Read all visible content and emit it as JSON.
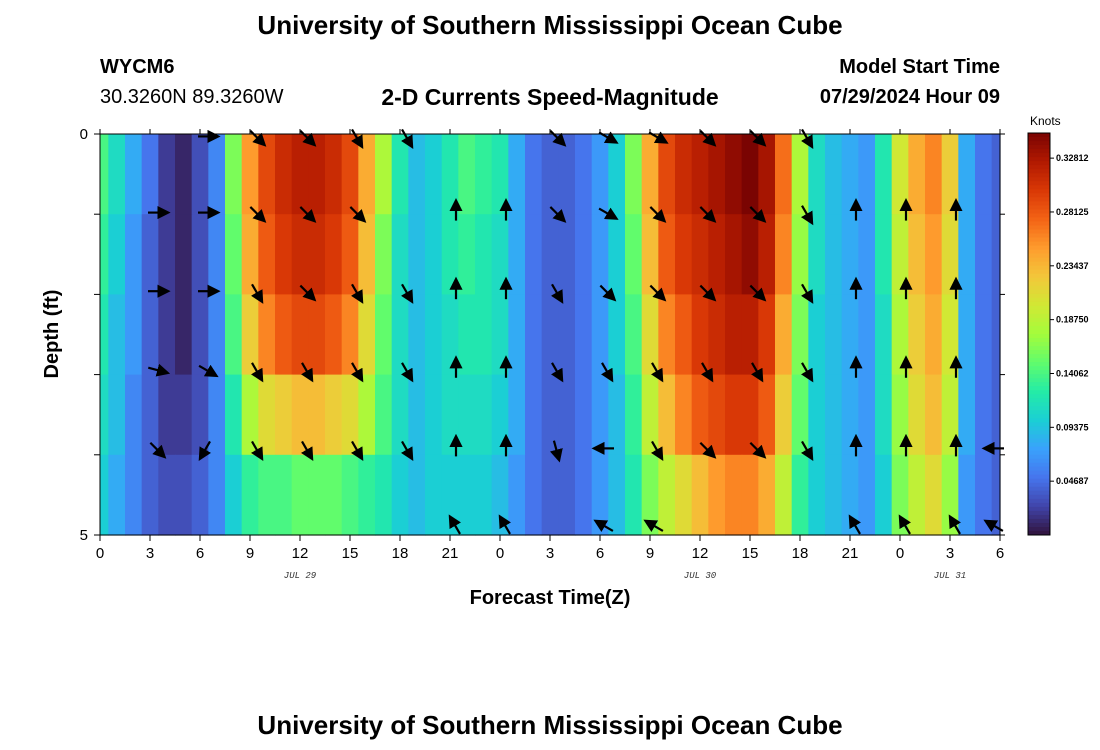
{
  "header": {
    "title": "University of Southern Mississippi Ocean Cube",
    "station_id": "WYCM6",
    "coordinates": "30.3260N  89.3260W",
    "subtitle": "2-D Currents Speed-Magnitude",
    "model_start_label": "Model Start Time",
    "model_start_value": "07/29/2024 Hour 09"
  },
  "footer": {
    "title": "University of Southern Mississippi Ocean Cube"
  },
  "chart_data": {
    "type": "heatmap",
    "title": "2-D Currents Speed-Magnitude",
    "xlabel": "Forecast Time(Z)",
    "ylabel": "Depth (ft)",
    "x_ticks": [
      "0",
      "3",
      "6",
      "9",
      "12",
      "15",
      "18",
      "21",
      "0",
      "3",
      "6",
      "9",
      "12",
      "15",
      "18",
      "21",
      "0",
      "3",
      "6"
    ],
    "date_labels": [
      {
        "text": "JUL 29",
        "x_hours": 12
      },
      {
        "text": "JUL 30",
        "x_hours": 36
      },
      {
        "text": "JUL 31",
        "x_hours": 51
      }
    ],
    "y_ticks": [
      "0",
      "5"
    ],
    "x_range_hours": [
      0,
      54
    ],
    "y_range_ft": [
      0,
      5
    ],
    "depth_levels": 5,
    "colorbar": {
      "unit": "Knots",
      "min": 0.0,
      "max": 0.35,
      "tick_labels": [
        "0.32812",
        "0.28125",
        "0.23437",
        "0.18750",
        "0.14062",
        "0.09375",
        "0.04687"
      ],
      "tick_values": [
        0.32812,
        0.28125,
        0.23437,
        0.1875,
        0.14062,
        0.09375,
        0.04687
      ],
      "colors": [
        "#30123b",
        "#4145ab",
        "#4675ed",
        "#39a2fc",
        "#1bcfd4",
        "#24eca6",
        "#61fc6c",
        "#a4fc3b",
        "#d1e834",
        "#f3c63a",
        "#fe9b2d",
        "#f36315",
        "#d93806",
        "#b11901",
        "#7a0402"
      ]
    },
    "columns_hours": [
      0,
      1,
      2,
      3,
      4,
      5,
      6,
      7,
      8,
      9,
      10,
      11,
      12,
      13,
      14,
      15,
      16,
      17,
      18,
      19,
      20,
      21,
      22,
      23,
      24,
      25,
      26,
      27,
      28,
      29,
      30,
      31,
      32,
      33,
      34,
      35,
      36,
      37,
      38,
      39,
      40,
      41,
      42,
      43,
      44,
      45,
      46,
      47,
      48,
      49,
      50,
      51,
      52,
      53,
      54
    ],
    "speed_knots": [
      [
        0.14,
        0.11,
        0.08,
        0.05,
        0.02,
        0.01,
        0.03,
        0.06,
        0.16,
        0.25,
        0.29,
        0.31,
        0.32,
        0.32,
        0.31,
        0.29,
        0.24,
        0.18,
        0.12,
        0.09,
        0.1,
        0.12,
        0.14,
        0.13,
        0.12,
        0.08,
        0.05,
        0.04,
        0.04,
        0.05,
        0.07,
        0.1,
        0.16,
        0.24,
        0.29,
        0.31,
        0.32,
        0.33,
        0.34,
        0.35,
        0.33,
        0.27,
        0.18,
        0.11,
        0.09,
        0.08,
        0.07,
        0.12,
        0.2,
        0.24,
        0.26,
        0.22,
        0.08,
        0.05,
        0.04
      ],
      [
        0.13,
        0.1,
        0.07,
        0.04,
        0.02,
        0.01,
        0.03,
        0.06,
        0.15,
        0.24,
        0.28,
        0.3,
        0.31,
        0.31,
        0.3,
        0.28,
        0.23,
        0.16,
        0.11,
        0.09,
        0.1,
        0.12,
        0.13,
        0.12,
        0.11,
        0.08,
        0.05,
        0.04,
        0.04,
        0.05,
        0.07,
        0.1,
        0.15,
        0.23,
        0.28,
        0.3,
        0.31,
        0.32,
        0.33,
        0.34,
        0.32,
        0.26,
        0.17,
        0.11,
        0.09,
        0.08,
        0.07,
        0.12,
        0.19,
        0.23,
        0.25,
        0.21,
        0.08,
        0.05,
        0.04
      ],
      [
        0.12,
        0.09,
        0.07,
        0.04,
        0.02,
        0.01,
        0.03,
        0.06,
        0.14,
        0.22,
        0.26,
        0.28,
        0.29,
        0.29,
        0.28,
        0.26,
        0.21,
        0.15,
        0.11,
        0.09,
        0.1,
        0.11,
        0.12,
        0.12,
        0.11,
        0.08,
        0.05,
        0.04,
        0.04,
        0.05,
        0.07,
        0.1,
        0.14,
        0.21,
        0.26,
        0.28,
        0.3,
        0.31,
        0.32,
        0.32,
        0.3,
        0.24,
        0.16,
        0.1,
        0.09,
        0.08,
        0.07,
        0.11,
        0.18,
        0.22,
        0.24,
        0.2,
        0.08,
        0.05,
        0.04
      ],
      [
        0.11,
        0.09,
        0.06,
        0.04,
        0.02,
        0.02,
        0.03,
        0.06,
        0.12,
        0.18,
        0.21,
        0.22,
        0.23,
        0.23,
        0.22,
        0.21,
        0.18,
        0.14,
        0.11,
        0.09,
        0.1,
        0.11,
        0.11,
        0.11,
        0.1,
        0.08,
        0.05,
        0.04,
        0.04,
        0.05,
        0.07,
        0.09,
        0.13,
        0.19,
        0.23,
        0.26,
        0.28,
        0.29,
        0.3,
        0.3,
        0.28,
        0.22,
        0.15,
        0.1,
        0.09,
        0.08,
        0.07,
        0.11,
        0.17,
        0.21,
        0.23,
        0.19,
        0.08,
        0.05,
        0.04
      ],
      [
        0.1,
        0.08,
        0.06,
        0.04,
        0.03,
        0.03,
        0.04,
        0.06,
        0.1,
        0.13,
        0.14,
        0.14,
        0.15,
        0.15,
        0.15,
        0.14,
        0.13,
        0.12,
        0.1,
        0.09,
        0.1,
        0.1,
        0.1,
        0.1,
        0.09,
        0.07,
        0.05,
        0.04,
        0.04,
        0.05,
        0.07,
        0.09,
        0.12,
        0.16,
        0.19,
        0.21,
        0.23,
        0.25,
        0.26,
        0.26,
        0.24,
        0.19,
        0.13,
        0.1,
        0.09,
        0.08,
        0.07,
        0.1,
        0.16,
        0.19,
        0.21,
        0.17,
        0.07,
        0.05,
        0.04
      ]
    ],
    "arrow_columns_hours": [
      0,
      3,
      6,
      9,
      12,
      15,
      18,
      21,
      24,
      27,
      30,
      33,
      36,
      39,
      42,
      45,
      48,
      51,
      54
    ],
    "arrow_directions_deg": [
      [
        null,
        null,
        90,
        135,
        135,
        150,
        150,
        null,
        null,
        135,
        120,
        120,
        135,
        135,
        150,
        null,
        null,
        null,
        null
      ],
      [
        null,
        90,
        90,
        135,
        135,
        135,
        null,
        0,
        0,
        135,
        120,
        135,
        135,
        135,
        150,
        0,
        0,
        0,
        null
      ],
      [
        null,
        90,
        90,
        150,
        135,
        150,
        150,
        0,
        0,
        150,
        135,
        135,
        135,
        135,
        150,
        0,
        0,
        0,
        null
      ],
      [
        null,
        105,
        120,
        150,
        150,
        150,
        150,
        0,
        0,
        150,
        150,
        150,
        150,
        150,
        150,
        0,
        0,
        0,
        null
      ],
      [
        null,
        135,
        210,
        150,
        150,
        150,
        150,
        0,
        0,
        165,
        270,
        150,
        135,
        135,
        150,
        0,
        0,
        0,
        270
      ],
      [
        null,
        null,
        null,
        null,
        null,
        null,
        null,
        330,
        330,
        null,
        300,
        300,
        null,
        null,
        null,
        330,
        330,
        330,
        300
      ]
    ]
  }
}
